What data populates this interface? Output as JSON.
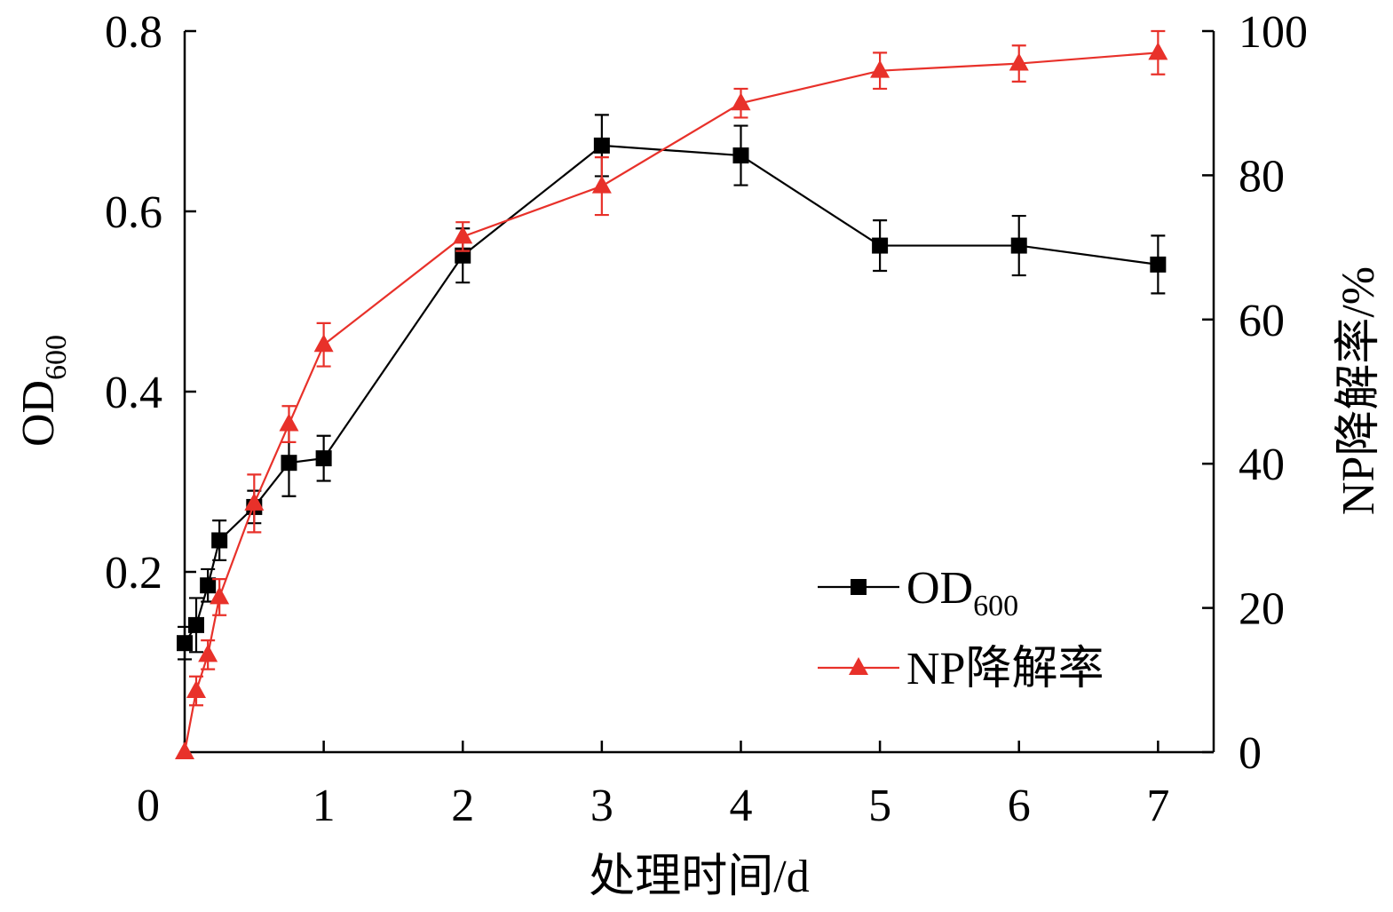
{
  "chart_data": {
    "type": "line",
    "xlabel": "处理时间/d",
    "ylabel": "OD",
    "ylabel_sub": "600",
    "y2label": "NP降解率/%",
    "xlim": [
      0,
      7.4
    ],
    "ylim": [
      0,
      0.8
    ],
    "y2lim": [
      0,
      100
    ],
    "x_ticks": [
      "0",
      "1",
      "2",
      "3",
      "4",
      "5",
      "6",
      "7"
    ],
    "y_ticks": [
      "0.2",
      "0.4",
      "0.6",
      "0.8"
    ],
    "y2_ticks": [
      "0",
      "20",
      "40",
      "60",
      "80",
      "100"
    ],
    "legend_position": "bottom-right",
    "series": [
      {
        "name": "OD",
        "name_sub": "600",
        "axis": "left",
        "color": "#000000",
        "marker": "square",
        "x": [
          0,
          0.083,
          0.167,
          0.25,
          0.5,
          0.75,
          1,
          2,
          3,
          4,
          5,
          6,
          7
        ],
        "y": [
          0.121,
          0.141,
          0.185,
          0.235,
          0.272,
          0.321,
          0.326,
          0.551,
          0.673,
          0.662,
          0.562,
          0.562,
          0.541
        ],
        "err": [
          0.018,
          0.03,
          0.018,
          0.022,
          0.018,
          0.037,
          0.025,
          0.03,
          0.034,
          0.033,
          0.028,
          0.033,
          0.032
        ]
      },
      {
        "name": "NP降解率",
        "axis": "right",
        "color": "#e8312a",
        "marker": "triangle",
        "x": [
          0,
          0.083,
          0.167,
          0.25,
          0.5,
          0.75,
          1,
          2,
          3,
          4,
          5,
          6,
          7
        ],
        "y": [
          0,
          8.5,
          13.5,
          21.5,
          34.5,
          45.5,
          56.5,
          71.5,
          78.5,
          90,
          94.5,
          95.5,
          97
        ],
        "err": [
          0,
          2,
          2,
          2.5,
          4,
          2.5,
          3,
          2,
          4,
          2,
          2.5,
          2.5,
          3
        ]
      }
    ]
  }
}
